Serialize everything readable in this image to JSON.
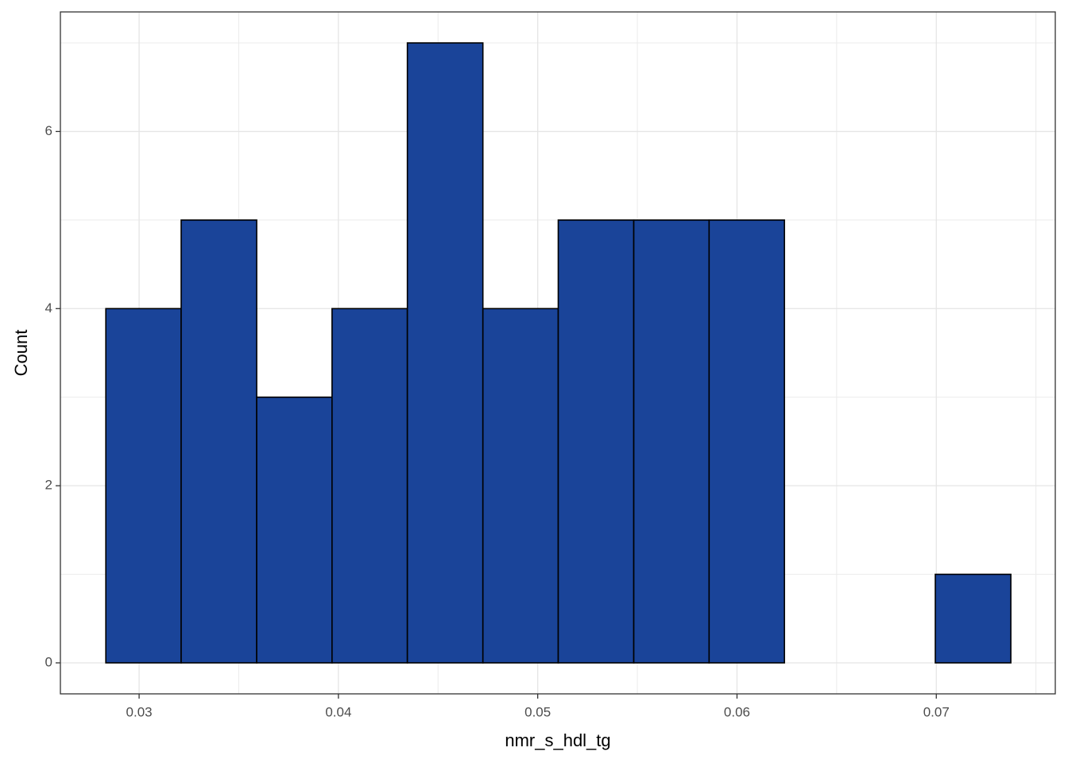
{
  "chart_data": {
    "type": "histogram",
    "x_label": "nmr_s_hdl_tg",
    "y_label": "Count",
    "bins": [
      0.02833,
      0.03211,
      0.0359,
      0.03968,
      0.04346,
      0.04725,
      0.05103,
      0.05482,
      0.0586,
      0.06238,
      0.06617,
      0.06995,
      0.07374
    ],
    "values": [
      4,
      5,
      3,
      4,
      7,
      4,
      5,
      5,
      5,
      0,
      0,
      1
    ],
    "color": "#1a4499",
    "edge_color": "#000000",
    "xlim": [
      0.02605,
      0.07597
    ],
    "xticks": [
      0.03,
      0.04,
      0.05,
      0.06,
      0.07
    ],
    "ylim": [
      -0.35,
      7.35
    ],
    "yticks": [
      0,
      2,
      4,
      6
    ],
    "grid": true
  }
}
